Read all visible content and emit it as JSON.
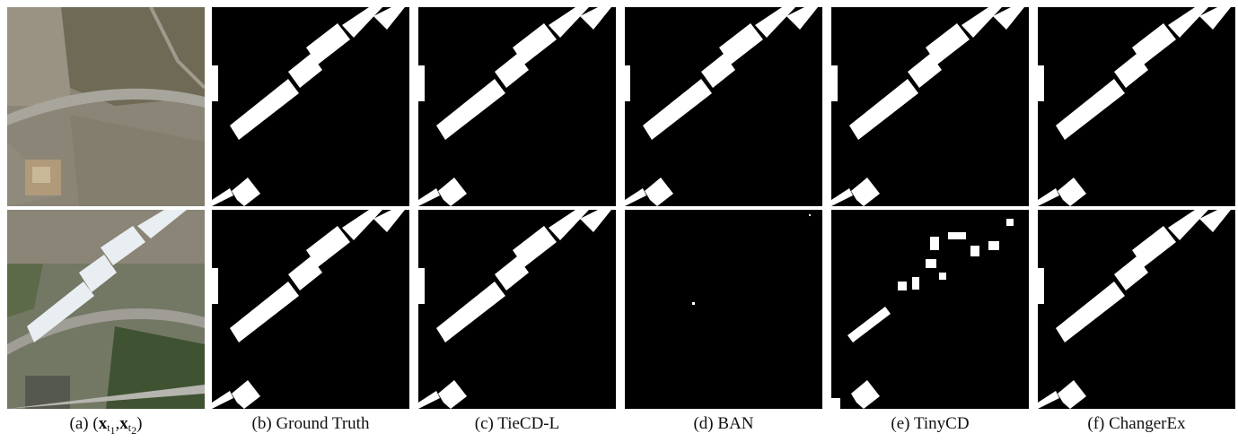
{
  "figure": {
    "columns": [
      {
        "id": "a",
        "caption_prefix": "(a)",
        "caption": "(x_t1, x_t2)"
      },
      {
        "id": "b",
        "caption_prefix": "(b)",
        "caption": "Ground Truth"
      },
      {
        "id": "c",
        "caption_prefix": "(c)",
        "caption": "TieCD-L"
      },
      {
        "id": "d",
        "caption_prefix": "(d)",
        "caption": "BAN"
      },
      {
        "id": "e",
        "caption_prefix": "(e)",
        "caption": "TinyCD"
      },
      {
        "id": "f",
        "caption_prefix": "(f)",
        "caption": "ChangerEx"
      }
    ],
    "caption_a": {
      "open": "(a) (",
      "x1": "x",
      "s1": "t",
      "n1": "1",
      "comma": ",",
      "x2": "x",
      "s2": "t",
      "n2": "2",
      "close": ")"
    },
    "colors": {
      "mask_bg": "#000000",
      "mask_fg": "#ffffff",
      "satellite_t1": "#8a8478",
      "satellite_t2": "#6f7565"
    }
  }
}
